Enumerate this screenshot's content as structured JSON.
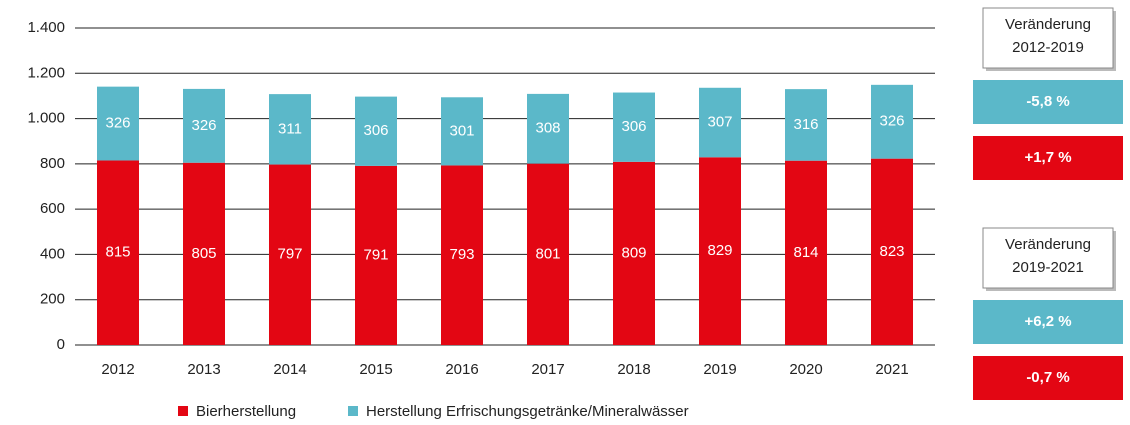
{
  "chart_data": {
    "type": "stacked_bar",
    "categories": [
      "2012",
      "2013",
      "2014",
      "2015",
      "2016",
      "2017",
      "2018",
      "2019",
      "2020",
      "2021"
    ],
    "series": [
      {
        "name": "Bierherstellung",
        "color": "#e30613",
        "values": [
          815,
          805,
          797,
          791,
          793,
          801,
          809,
          829,
          814,
          823
        ]
      },
      {
        "name": "Herstellung Erfrischungsgetränke/Mineralwässer",
        "color": "#5bb8c9",
        "values": [
          326,
          326,
          311,
          306,
          301,
          308,
          306,
          307,
          316,
          326
        ]
      }
    ],
    "ylim": [
      0,
      1400
    ],
    "yticks": [
      0,
      200,
      400,
      600,
      800,
      {
        "value": 1000,
        "label": "1.000"
      },
      {
        "value": 1200,
        "label": "1.200"
      },
      {
        "value": 1400,
        "label": "1.400"
      }
    ],
    "grid": true,
    "annotations": [
      {
        "label": "Veränderung",
        "period": "2012-2019",
        "values": [
          "-5,8 %",
          "+1,7 %"
        ]
      },
      {
        "label": "Veränderung",
        "period": "2019-2021",
        "values": [
          "+6,2 %",
          "-0,7 %"
        ]
      }
    ]
  }
}
